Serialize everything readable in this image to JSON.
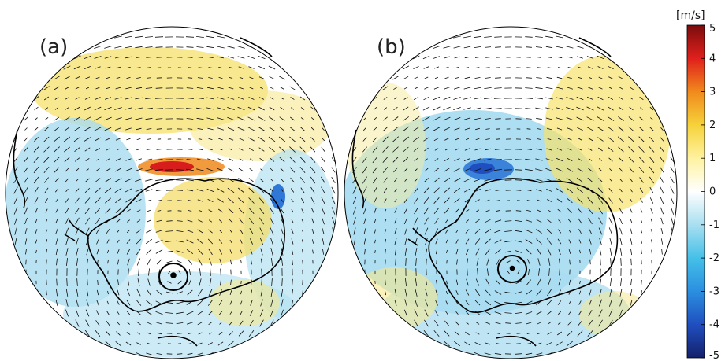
{
  "panels": [
    {
      "label": "(a)"
    },
    {
      "label": "(b)"
    }
  ],
  "colorbar": {
    "unit": "[m/s]",
    "ticks": [
      "5",
      "4",
      "3",
      "2",
      "1",
      "0",
      "-1",
      "-2",
      "-3",
      "-4",
      "-5"
    ],
    "range": [
      -5,
      5
    ],
    "colors": [
      "#14206b",
      "#1f4fbf",
      "#2b8fe0",
      "#45c0e8",
      "#a8dff0",
      "#ffffff",
      "#fff2a0",
      "#f6d23a",
      "#f08a1c",
      "#e0201c",
      "#7a0d0d"
    ]
  },
  "colors": {
    "coast": "#000000",
    "vector": "#111111",
    "positive_anomaly": "#f3df5a",
    "negative_anomaly": "#7ec9e6"
  }
}
